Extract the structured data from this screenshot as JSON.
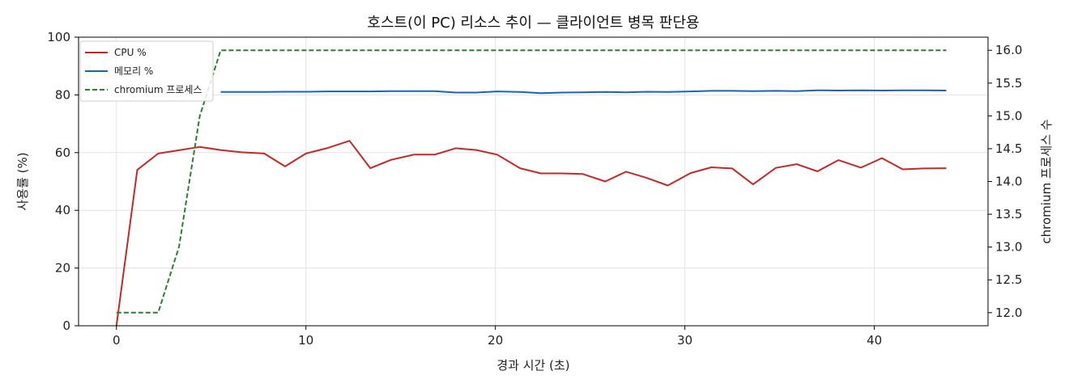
{
  "chart_data": {
    "type": "line",
    "title": "호스트(이 PC) 리소스 추이 — 클라이언트 병목 판단용",
    "xlabel": "경과 시간 (초)",
    "ylabel": "사용률 (%)",
    "y2label": "chromium 프로세스 수",
    "xlim": [
      -2,
      46
    ],
    "ylim": [
      0,
      100
    ],
    "y2lim": [
      11.8,
      16.2
    ],
    "xticks": [
      "0",
      "10",
      "20",
      "30",
      "40"
    ],
    "xtick_values": [
      0,
      10,
      20,
      30,
      40
    ],
    "yticks": [
      "0",
      "20",
      "40",
      "60",
      "80",
      "100"
    ],
    "ytick_values": [
      0,
      20,
      40,
      60,
      80,
      100
    ],
    "y2ticks": [
      "12.0",
      "12.5",
      "13.0",
      "13.5",
      "14.0",
      "14.5",
      "15.0",
      "15.5",
      "16.0"
    ],
    "y2tick_values": [
      12.0,
      12.5,
      13.0,
      13.5,
      14.0,
      14.5,
      15.0,
      15.5,
      16.0
    ],
    "grid": true,
    "legend_position": "top-left",
    "series": [
      {
        "name": "CPU %",
        "axis": "left",
        "style": "solid",
        "color": "#c62828",
        "x": [
          0.0,
          1.1,
          2.2,
          3.3,
          4.4,
          5.5,
          6.6,
          7.8,
          8.9,
          10.0,
          11.1,
          12.3,
          13.4,
          14.5,
          15.7,
          16.8,
          17.9,
          19.0,
          20.1,
          21.3,
          22.4,
          23.5,
          24.6,
          25.8,
          26.9,
          28.0,
          29.1,
          30.3,
          31.4,
          32.5,
          33.6,
          34.8,
          35.9,
          37.0,
          38.1,
          39.3,
          40.4,
          41.5,
          42.6,
          43.8
        ],
        "y": [
          0.0,
          54.0,
          59.7,
          60.8,
          62.0,
          60.9,
          60.1,
          59.7,
          55.2,
          59.7,
          61.5,
          64.1,
          54.6,
          57.5,
          59.3,
          59.3,
          61.5,
          60.9,
          59.3,
          54.6,
          52.8,
          52.8,
          52.6,
          50.0,
          53.4,
          51.2,
          48.6,
          52.9,
          54.9,
          54.5,
          49.0,
          54.7,
          56.0,
          53.5,
          57.4,
          54.8,
          58.1,
          54.2,
          54.5,
          54.6
        ]
      },
      {
        "name": "메모리 %",
        "axis": "left",
        "style": "solid",
        "color": "#1565c0",
        "x": [
          5.5,
          6.6,
          7.8,
          8.9,
          10.0,
          11.1,
          12.3,
          13.4,
          14.5,
          15.7,
          16.8,
          17.9,
          19.0,
          20.1,
          21.3,
          22.4,
          23.5,
          24.6,
          25.8,
          26.9,
          28.0,
          29.1,
          30.3,
          31.4,
          32.5,
          33.6,
          34.8,
          35.9,
          37.0,
          38.1,
          39.3,
          40.4,
          41.5,
          42.6,
          43.8
        ],
        "y": [
          81.0,
          81.0,
          81.0,
          81.1,
          81.1,
          81.2,
          81.2,
          81.2,
          81.3,
          81.3,
          81.3,
          80.8,
          80.8,
          81.2,
          81.0,
          80.6,
          80.8,
          80.9,
          81.0,
          80.9,
          81.1,
          81.0,
          81.2,
          81.4,
          81.4,
          81.3,
          81.4,
          81.3,
          81.6,
          81.5,
          81.6,
          81.5,
          81.6,
          81.6,
          81.5
        ]
      },
      {
        "name": "chromium 프로세스",
        "axis": "right",
        "style": "dashed",
        "color": "#2e7d32",
        "x": [
          0.0,
          1.1,
          2.2,
          3.3,
          4.4,
          5.5,
          43.8
        ],
        "y": [
          12.0,
          12.0,
          12.0,
          13.0,
          15.0,
          16.0,
          16.0
        ]
      }
    ]
  }
}
